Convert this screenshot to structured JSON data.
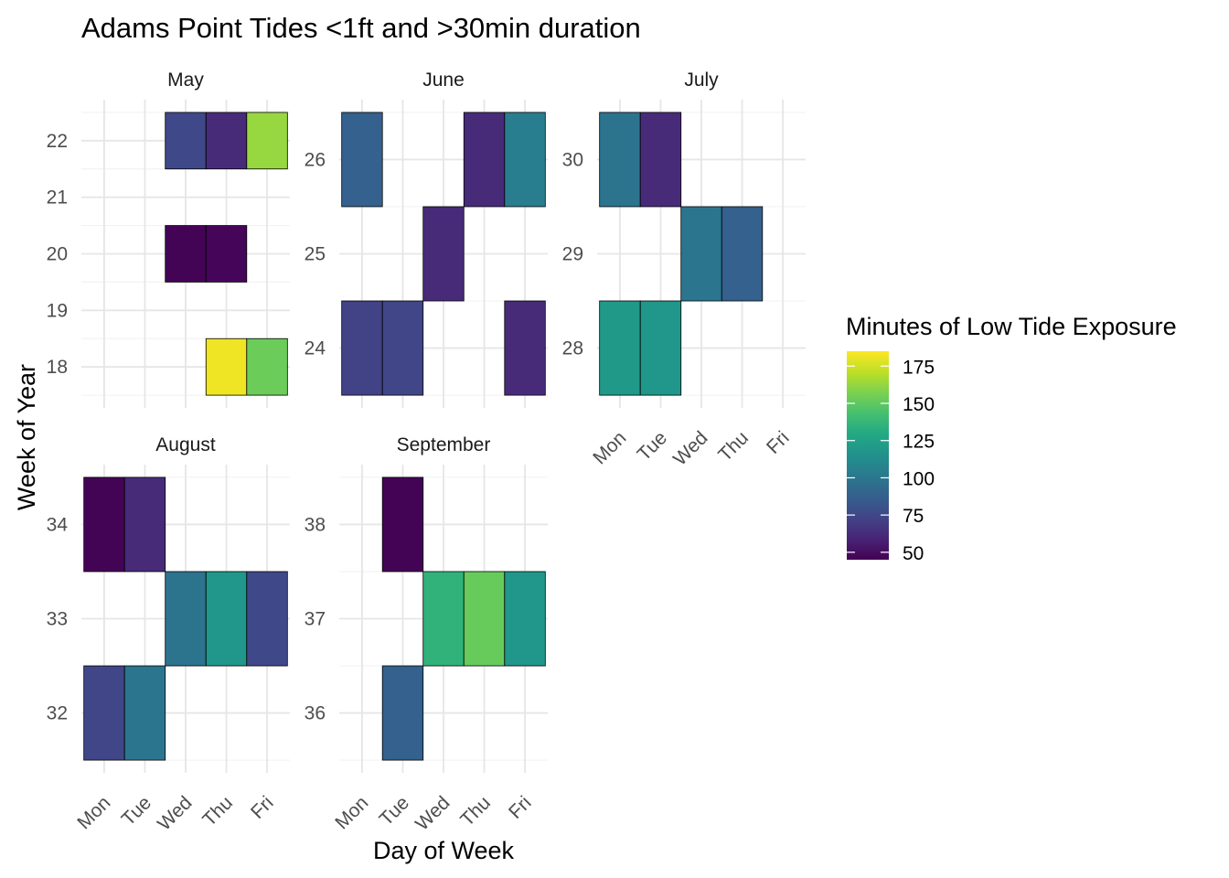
{
  "chart_data": {
    "type": "heatmap",
    "title": "Adams Point Tides <1ft and >30min duration",
    "xlabel": "Day of Week",
    "ylabel": "Week of Year",
    "days": [
      "Mon",
      "Tue",
      "Wed",
      "Thu",
      "Fri"
    ],
    "legend": {
      "title": "Minutes of Low Tide Exposure",
      "placement": "right",
      "min": 45,
      "max": 185,
      "ticks": [
        50,
        75,
        100,
        125,
        150,
        175
      ]
    },
    "colormap": "viridis",
    "panels": [
      {
        "name": "May",
        "week_range": [
          17.5,
          22.5
        ],
        "week_ticks": [
          18,
          19,
          20,
          21,
          22
        ],
        "cells": [
          {
            "week": 22,
            "day": "Wed",
            "minutes": 75
          },
          {
            "week": 22,
            "day": "Thu",
            "minutes": 62
          },
          {
            "week": 22,
            "day": "Fri",
            "minutes": 163
          },
          {
            "week": 20,
            "day": "Wed",
            "minutes": 46
          },
          {
            "week": 20,
            "day": "Thu",
            "minutes": 47
          },
          {
            "week": 18,
            "day": "Thu",
            "minutes": 182
          },
          {
            "week": 18,
            "day": "Fri",
            "minutes": 153
          }
        ]
      },
      {
        "name": "June",
        "week_range": [
          23.5,
          26.5
        ],
        "week_ticks": [
          24,
          25,
          26
        ],
        "cells": [
          {
            "week": 26,
            "day": "Mon",
            "minutes": 88
          },
          {
            "week": 26,
            "day": "Thu",
            "minutes": 62
          },
          {
            "week": 26,
            "day": "Fri",
            "minutes": 104
          },
          {
            "week": 25,
            "day": "Wed",
            "minutes": 62
          },
          {
            "week": 24,
            "day": "Mon",
            "minutes": 72
          },
          {
            "week": 24,
            "day": "Tue",
            "minutes": 74
          },
          {
            "week": 24,
            "day": "Fri",
            "minutes": 62
          }
        ]
      },
      {
        "name": "July",
        "week_range": [
          27.5,
          30.5
        ],
        "week_ticks": [
          28,
          29,
          30
        ],
        "cells": [
          {
            "week": 30,
            "day": "Mon",
            "minutes": 98
          },
          {
            "week": 30,
            "day": "Tue",
            "minutes": 62
          },
          {
            "week": 29,
            "day": "Wed",
            "minutes": 100
          },
          {
            "week": 29,
            "day": "Thu",
            "minutes": 88
          },
          {
            "week": 28,
            "day": "Mon",
            "minutes": 120
          },
          {
            "week": 28,
            "day": "Tue",
            "minutes": 118
          }
        ]
      },
      {
        "name": "August",
        "week_range": [
          31.5,
          34.5
        ],
        "week_ticks": [
          32,
          33,
          34
        ],
        "cells": [
          {
            "week": 34,
            "day": "Mon",
            "minutes": 46
          },
          {
            "week": 34,
            "day": "Tue",
            "minutes": 62
          },
          {
            "week": 33,
            "day": "Wed",
            "minutes": 98
          },
          {
            "week": 33,
            "day": "Thu",
            "minutes": 118
          },
          {
            "week": 33,
            "day": "Fri",
            "minutes": 75
          },
          {
            "week": 32,
            "day": "Mon",
            "minutes": 74
          },
          {
            "week": 32,
            "day": "Tue",
            "minutes": 100
          }
        ]
      },
      {
        "name": "September",
        "week_range": [
          35.5,
          38.5
        ],
        "week_ticks": [
          36,
          37,
          38
        ],
        "cells": [
          {
            "week": 38,
            "day": "Tue",
            "minutes": 46
          },
          {
            "week": 37,
            "day": "Wed",
            "minutes": 135
          },
          {
            "week": 37,
            "day": "Thu",
            "minutes": 152
          },
          {
            "week": 37,
            "day": "Fri",
            "minutes": 118
          },
          {
            "week": 36,
            "day": "Tue",
            "minutes": 88
          }
        ]
      }
    ]
  }
}
